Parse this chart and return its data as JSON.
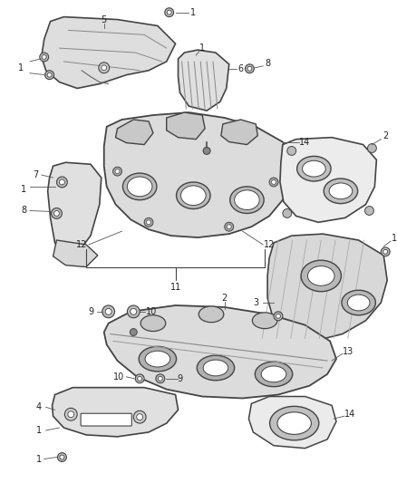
{
  "background_color": "#ffffff",
  "line_color": "#444444",
  "text_color": "#222222",
  "fig_width": 4.38,
  "fig_height": 5.33,
  "dpi": 100
}
